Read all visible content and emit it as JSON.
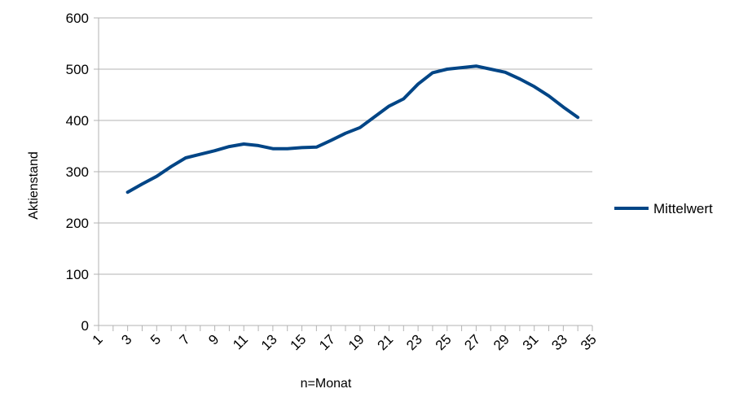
{
  "chart_data": {
    "type": "line",
    "xlabel": "n=Monat",
    "ylabel": "Aktienstand",
    "xlim": [
      1,
      35
    ],
    "ylim": [
      0,
      600
    ],
    "y_ticks": [
      "0",
      "100",
      "200",
      "300",
      "400",
      "500",
      "600"
    ],
    "x_ticks": [
      "1",
      "3",
      "5",
      "7",
      "9",
      "11",
      "13",
      "15",
      "17",
      "19",
      "21",
      "23",
      "25",
      "27",
      "29",
      "31",
      "33",
      "35"
    ],
    "grid": "horizontal",
    "legend_position": "right",
    "series": [
      {
        "name": "Mittelwert",
        "color": "#004586",
        "x": [
          3,
          4,
          5,
          6,
          7,
          8,
          9,
          10,
          11,
          12,
          13,
          14,
          15,
          16,
          17,
          18,
          19,
          20,
          21,
          22,
          23,
          24,
          25,
          26,
          27,
          28,
          29,
          30,
          31,
          32,
          33,
          34
        ],
        "values": [
          260,
          276,
          291,
          310,
          327,
          334,
          341,
          349,
          354,
          351,
          345,
          345,
          347,
          348,
          361,
          375,
          386,
          407,
          428,
          442,
          471,
          493,
          500,
          503,
          506,
          500,
          494,
          481,
          466,
          448,
          426,
          406
        ]
      }
    ]
  }
}
